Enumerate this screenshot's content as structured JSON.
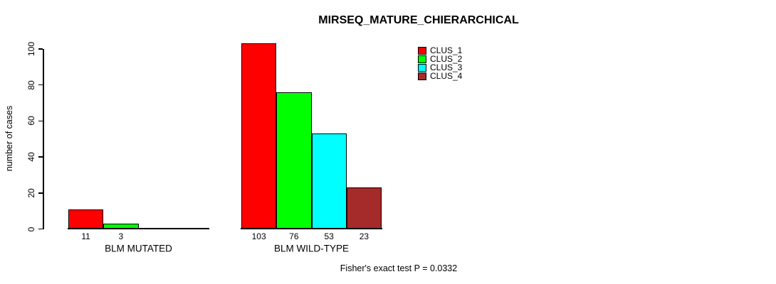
{
  "chart_data": {
    "type": "bar",
    "title": "MIRSEQ_MATURE_CHIERARCHICAL",
    "ylabel": "number of cases",
    "xlabel": "",
    "ylim": [
      0,
      100
    ],
    "yticks": [
      0,
      20,
      40,
      60,
      80,
      100
    ],
    "grid": false,
    "legend_position": "top-right",
    "legend": [
      "CLUS_1",
      "CLUS_2",
      "CLUS_3",
      "CLUS_4"
    ],
    "series_colors": [
      "#FF0000",
      "#00FF00",
      "#00FFFF",
      "#A52A2A"
    ],
    "categories": [
      "BLM MUTATED",
      "BLM WILD-TYPE"
    ],
    "series": [
      {
        "name": "CLUS_1",
        "values": [
          11,
          103
        ]
      },
      {
        "name": "CLUS_2",
        "values": [
          3,
          76
        ]
      },
      {
        "name": "CLUS_3",
        "values": [
          0,
          53
        ]
      },
      {
        "name": "CLUS_4",
        "values": [
          0,
          23
        ]
      }
    ],
    "bar_value_labels": [
      [
        "11",
        "3",
        null,
        null
      ],
      [
        "103",
        "76",
        "53",
        "23"
      ]
    ],
    "annotation": "Fisher's exact test P = 0.0332",
    "axis_color": "#000000",
    "text_color": "#000000",
    "background_color": "#ffffff"
  }
}
